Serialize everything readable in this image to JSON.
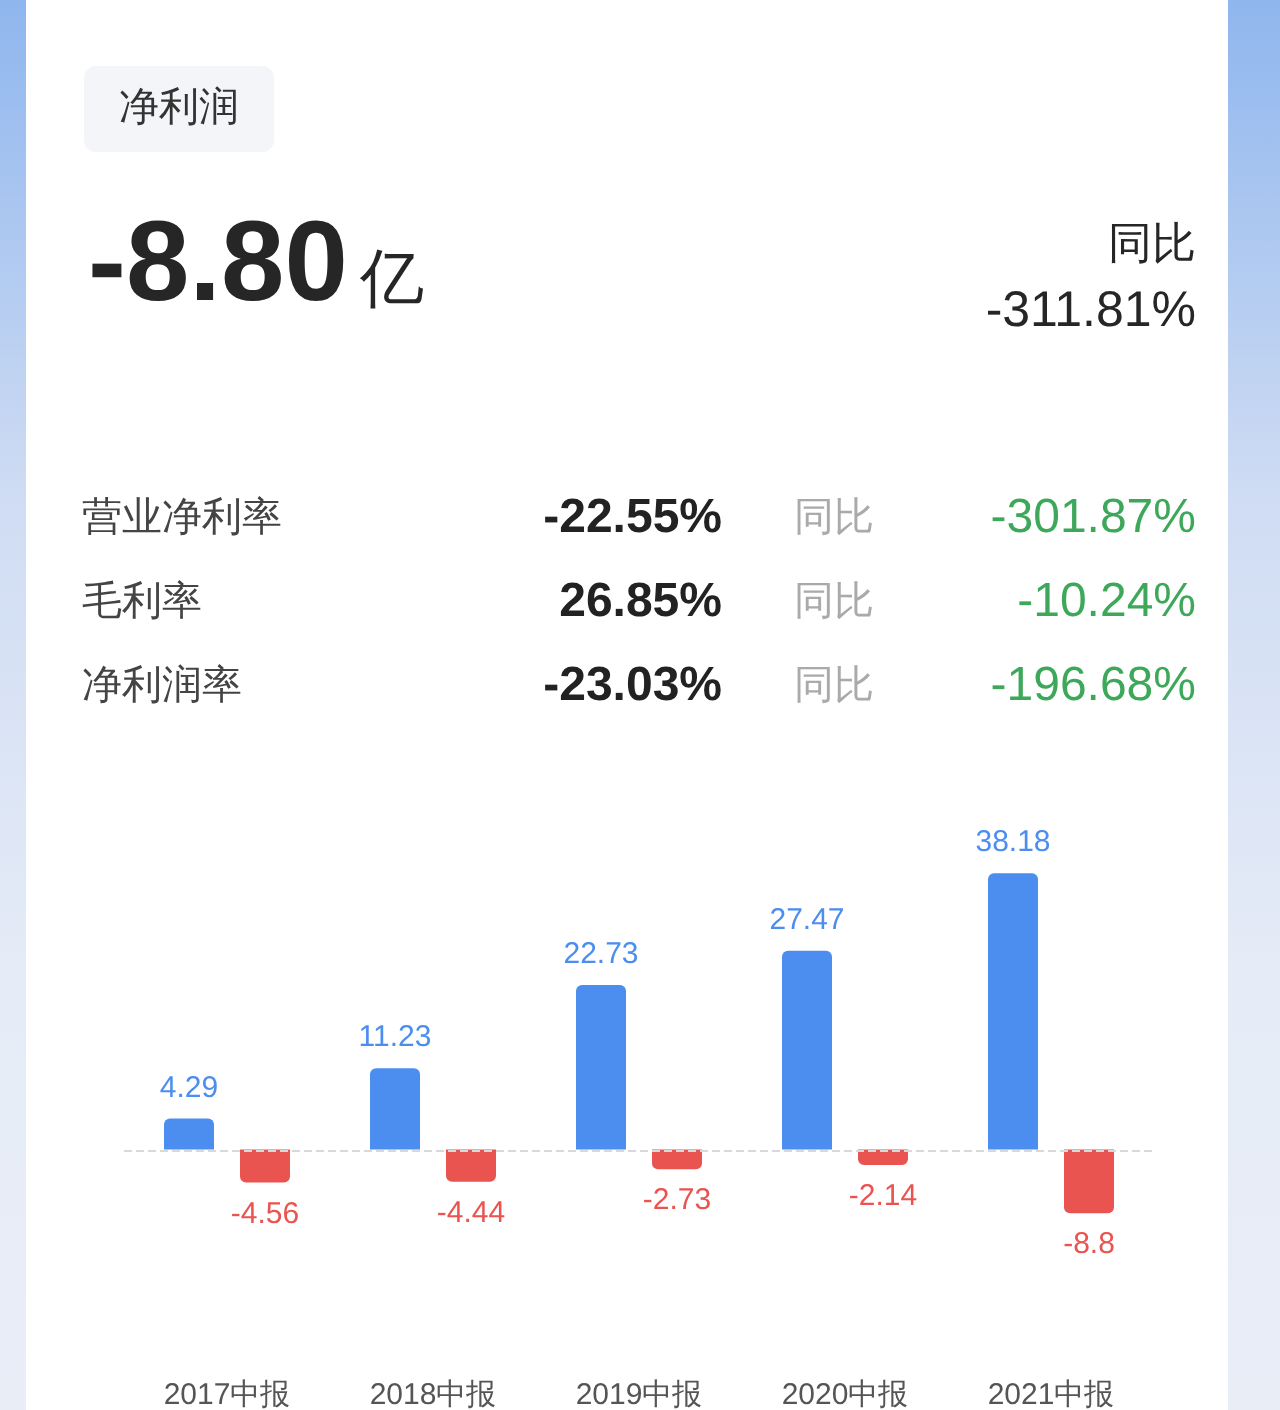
{
  "chart_data": [
    {
      "type": "other",
      "title": "净利润",
      "annotations": [
        "-8.80亿",
        "同比",
        "-311.81%",
        "营业净利率",
        "-22.55%",
        "同比",
        "-301.87%",
        "毛利率",
        "26.85%",
        "同比",
        "-10.24%",
        "净利润率",
        "-23.03%",
        "同比",
        "-196.68%"
      ]
    },
    {
      "type": "bar",
      "categories": [
        "2017中报",
        "2018中报",
        "2019中报",
        "2020中报",
        "2021中报"
      ],
      "series": [
        {
          "color": "#4b8ef0",
          "values": [
            4.29,
            11.23,
            22.73,
            27.47,
            38.18
          ]
        },
        {
          "color": "#ea5450",
          "values": [
            -4.56,
            -4.44,
            -2.73,
            -2.14,
            -8.8
          ]
        }
      ],
      "ref_lines": [
        {
          "axis": "y",
          "value": 0,
          "color": "#d9d9d9",
          "line_style": "dashed"
        }
      ],
      "data_labels": true,
      "tick_labels": "x"
    }
  ]
}
